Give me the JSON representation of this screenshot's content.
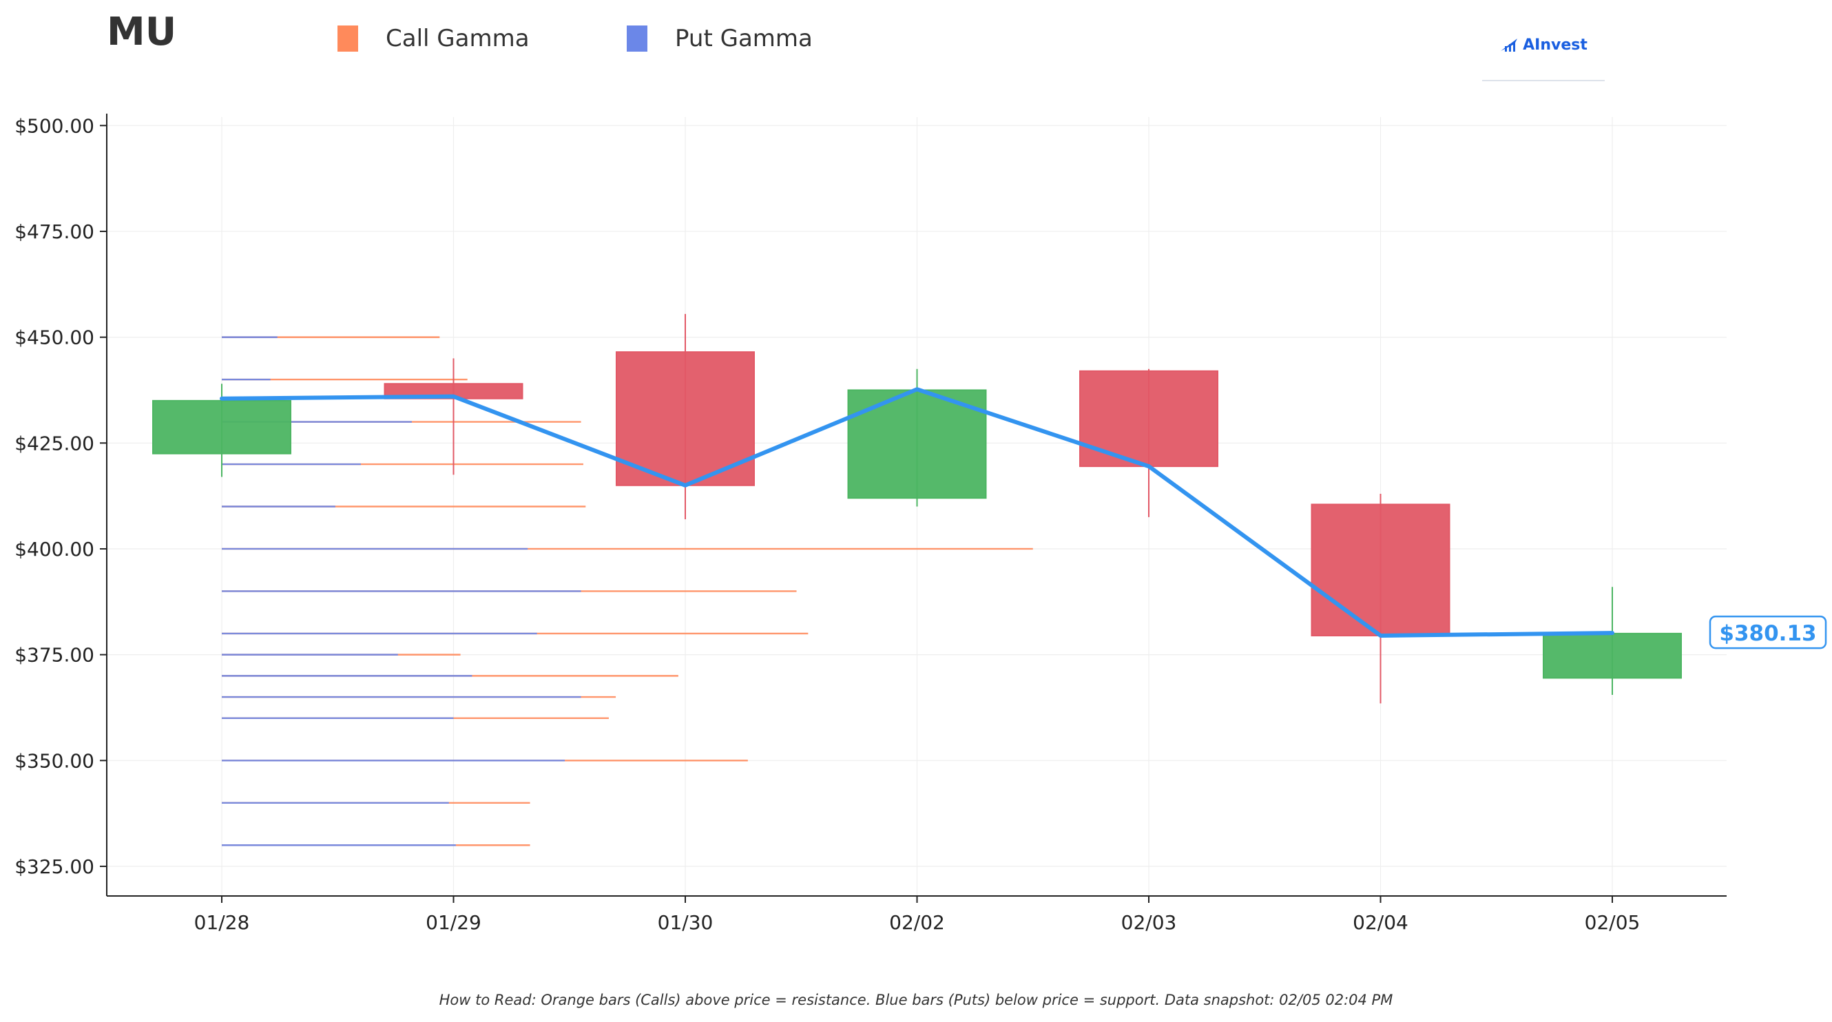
{
  "header": {
    "ticker": "MU",
    "legend": [
      {
        "label": "Call Gamma",
        "color": "#ff8a5b"
      },
      {
        "label": "Put Gamma",
        "color": "#6b87e8"
      }
    ],
    "brand": "AInvest"
  },
  "footer": {
    "note": "How to Read: Orange bars (Calls) above price = resistance. Blue bars (Puts) below price = support. Data snapshot: 02/05 02:04 PM"
  },
  "colors": {
    "up": "#4cb562",
    "down": "#e25866",
    "price_line": "#3394f0",
    "call": "#ff8a5b",
    "put": "#6b87e8",
    "grid": "#eeeeee",
    "axis": "#222222"
  },
  "chart_data": {
    "type": "candlestick",
    "title": "MU",
    "categories": [
      "01/28",
      "01/29",
      "01/30",
      "02/02",
      "02/03",
      "02/04",
      "02/05"
    ],
    "ylim": [
      318,
      502
    ],
    "yticks": [
      325,
      350,
      375,
      400,
      425,
      450,
      475,
      500
    ],
    "ytick_labels": [
      "$325.00",
      "$350.00",
      "$375.00",
      "$400.00",
      "$425.00",
      "$450.00",
      "$475.00",
      "$500.00"
    ],
    "grid": true,
    "candles": [
      {
        "date": "01/28",
        "open": 422.5,
        "high": 439.0,
        "low": 417.0,
        "close": 435.0
      },
      {
        "date": "01/29",
        "open": 439.0,
        "high": 445.0,
        "low": 417.5,
        "close": 435.5
      },
      {
        "date": "01/30",
        "open": 446.5,
        "high": 455.5,
        "low": 407.0,
        "close": 415.0
      },
      {
        "date": "02/02",
        "open": 412.0,
        "high": 442.5,
        "low": 410.0,
        "close": 437.5
      },
      {
        "date": "02/03",
        "open": 442.0,
        "high": 442.5,
        "low": 407.5,
        "close": 419.5
      },
      {
        "date": "02/04",
        "open": 410.5,
        "high": 413.0,
        "low": 363.5,
        "close": 379.5
      },
      {
        "date": "02/05",
        "open": 369.5,
        "high": 391.0,
        "low": 365.5,
        "close": 380.0
      }
    ],
    "price_line": {
      "name": "Price",
      "values": [
        435.5,
        436.0,
        415.0,
        437.7,
        419.5,
        379.5,
        380.13
      ]
    },
    "current_price_label": "$380.13",
    "gamma_exposure": {
      "note": "horizontal bars at strike levels; length in units of trading-day spacing measured from 01/28",
      "levels": [
        {
          "strike": 450,
          "put": 0.24,
          "call": 0.94
        },
        {
          "strike": 440,
          "put": 0.21,
          "call": 1.06
        },
        {
          "strike": 430,
          "put": 0.82,
          "call": 1.55
        },
        {
          "strike": 420,
          "put": 0.6,
          "call": 1.56
        },
        {
          "strike": 410,
          "put": 0.49,
          "call": 1.57
        },
        {
          "strike": 400,
          "put": 1.32,
          "call": 3.5
        },
        {
          "strike": 390,
          "put": 1.55,
          "call": 2.48
        },
        {
          "strike": 380,
          "put": 1.36,
          "call": 2.53
        },
        {
          "strike": 375,
          "put": 0.76,
          "call": 1.03
        },
        {
          "strike": 370,
          "put": 1.08,
          "call": 1.97
        },
        {
          "strike": 365,
          "put": 1.55,
          "call": 1.7
        },
        {
          "strike": 360,
          "put": 1.0,
          "call": 1.67
        },
        {
          "strike": 350,
          "put": 1.48,
          "call": 2.27
        },
        {
          "strike": 340,
          "put": 0.98,
          "call": 1.33
        },
        {
          "strike": 330,
          "put": 1.01,
          "call": 1.33
        }
      ]
    }
  }
}
